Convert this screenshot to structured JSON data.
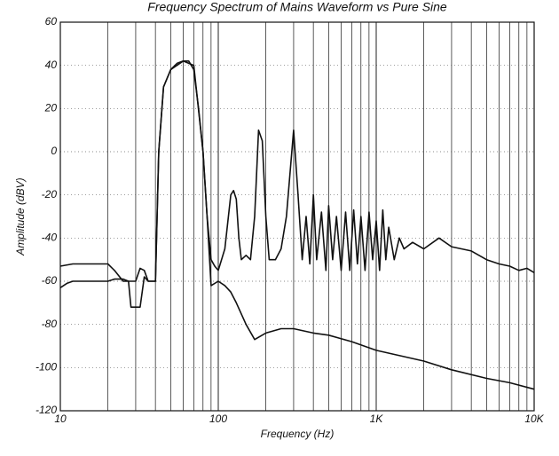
{
  "chart_data": {
    "type": "line",
    "title": "Frequency Spectrum of Mains Waveform vs Pure Sine",
    "x_label": "Frequency (Hz)",
    "y_label": "Amplitude (dBV)",
    "log_x": true,
    "grid": true,
    "minor_grid": true,
    "xlim": [
      10,
      10000
    ],
    "xticks": [
      10,
      100,
      {
        "value": 1000,
        "label": "1K"
      },
      {
        "value": 10000,
        "label": "10K"
      }
    ],
    "ylim": [
      -120,
      60
    ],
    "yticks": [
      60,
      40,
      20,
      0,
      -20,
      -40,
      -60,
      -80,
      -100,
      -120
    ],
    "series": [
      {
        "color": "#111111",
        "x": [
          10,
          12,
          20,
          22,
          25,
          30,
          32,
          34,
          36,
          38,
          40,
          42,
          45,
          50,
          55,
          60,
          65,
          70,
          75,
          80,
          85,
          90,
          95,
          100,
          110,
          120,
          125,
          130,
          135,
          140,
          150,
          160,
          170,
          180,
          190,
          200,
          210,
          230,
          250,
          270,
          300,
          320,
          340,
          360,
          380,
          400,
          420,
          450,
          480,
          500,
          530,
          560,
          600,
          640,
          680,
          720,
          760,
          800,
          850,
          900,
          950,
          1000,
          1050,
          1100,
          1150,
          1200,
          1300,
          1400,
          1500,
          1700,
          2000,
          2500,
          3000,
          4000,
          5000,
          6000,
          7000,
          8000,
          9000,
          10000
        ],
        "values": [
          -53,
          -52,
          -52,
          -55,
          -60,
          -60,
          -54,
          -55,
          -60,
          -60,
          -60,
          0,
          30,
          38,
          41,
          42,
          42,
          38,
          20,
          0,
          -30,
          -50,
          -53,
          -55,
          -45,
          -20,
          -18,
          -22,
          -40,
          -50,
          -48,
          -50,
          -30,
          10,
          5,
          -30,
          -50,
          -50,
          -45,
          -30,
          10,
          -20,
          -50,
          -30,
          -52,
          -20,
          -50,
          -28,
          -55,
          -25,
          -50,
          -30,
          -55,
          -28,
          -55,
          -27,
          -52,
          -30,
          -55,
          -28,
          -50,
          -32,
          -55,
          -27,
          -50,
          -35,
          -50,
          -40,
          -45,
          -42,
          -45,
          -40,
          -44,
          -46,
          -50,
          -52,
          -53,
          -55,
          -54,
          -56
        ]
      },
      {
        "color": "#111111",
        "x": [
          10,
          11,
          12,
          20,
          22,
          25,
          27,
          28,
          30,
          32,
          34,
          36,
          38,
          40,
          42,
          45,
          50,
          60,
          70,
          80,
          85,
          90,
          100,
          110,
          120,
          130,
          150,
          170,
          200,
          250,
          300,
          400,
          500,
          700,
          1000,
          2000,
          3000,
          5000,
          7000,
          10000
        ],
        "values": [
          -63,
          -61,
          -60,
          -60,
          -59,
          -59,
          -60,
          -72,
          -72,
          -72,
          -58,
          -60,
          -60,
          -60,
          0,
          30,
          38,
          42,
          40,
          0,
          -30,
          -62,
          -60,
          -62,
          -65,
          -70,
          -80,
          -87,
          -84,
          -82,
          -82,
          -84,
          -85,
          -88,
          -92,
          -97,
          -101,
          -105,
          -107,
          -110
        ]
      }
    ]
  }
}
